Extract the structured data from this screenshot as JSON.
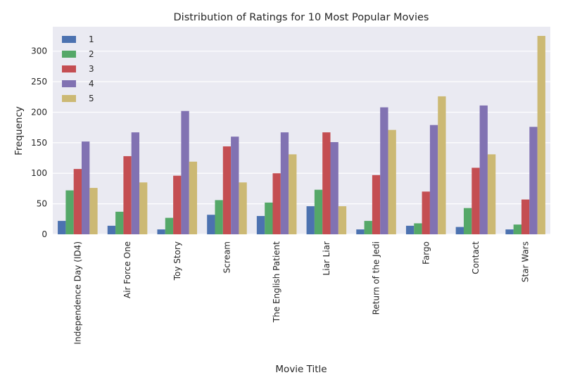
{
  "chart_data": {
    "type": "bar",
    "title": "Distribution of Ratings for 10 Most Popular Movies",
    "xlabel": "Movie Title",
    "ylabel": "Frequency",
    "ylim": [
      0,
      340
    ],
    "yticks": [
      0,
      50,
      100,
      150,
      200,
      250,
      300
    ],
    "grid": true,
    "legend_position": "top-left",
    "categories": [
      "Independence Day (ID4)",
      "Air Force One",
      "Toy Story",
      "Scream",
      "The English Patient",
      "Liar Liar",
      "Return of the Jedi",
      "Fargo",
      "Contact",
      "Star Wars"
    ],
    "series": [
      {
        "name": "1",
        "color": "#4c72b0",
        "values": [
          22,
          14,
          8,
          32,
          30,
          46,
          8,
          14,
          12,
          8
        ]
      },
      {
        "name": "2",
        "color": "#55a868",
        "values": [
          72,
          37,
          27,
          56,
          52,
          73,
          22,
          18,
          43,
          16
        ]
      },
      {
        "name": "3",
        "color": "#c44e52",
        "values": [
          107,
          128,
          96,
          144,
          100,
          167,
          97,
          70,
          109,
          57
        ]
      },
      {
        "name": "4",
        "color": "#8172b2",
        "values": [
          152,
          167,
          202,
          160,
          167,
          151,
          208,
          179,
          211,
          176
        ]
      },
      {
        "name": "5",
        "color": "#ccb974",
        "values": [
          76,
          85,
          119,
          85,
          131,
          46,
          171,
          226,
          131,
          325
        ]
      }
    ]
  }
}
